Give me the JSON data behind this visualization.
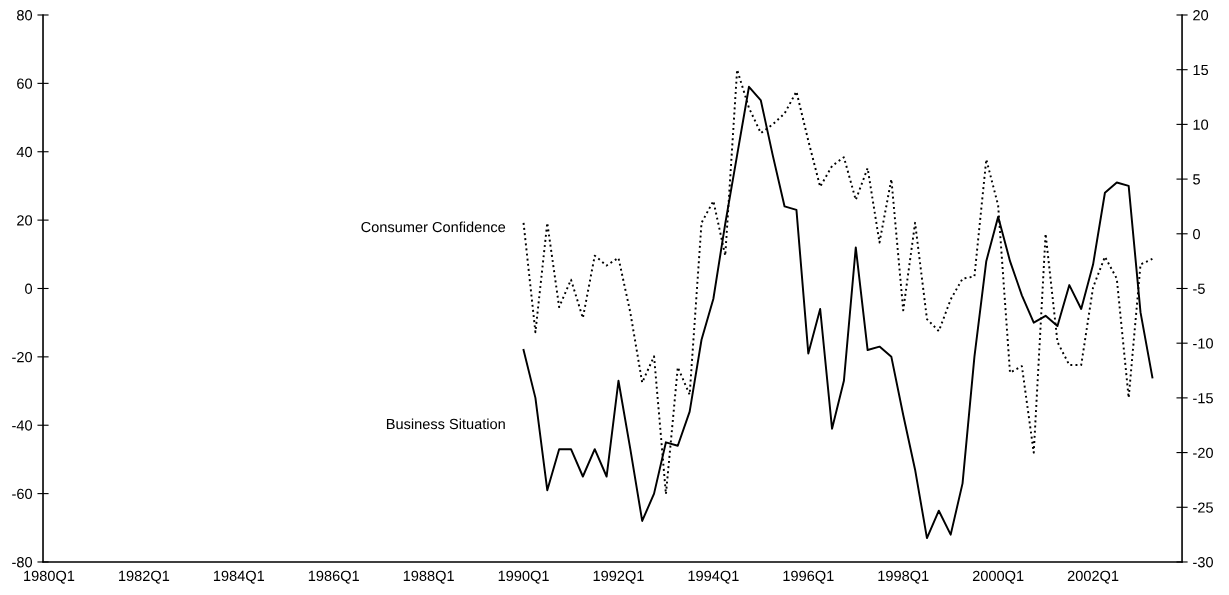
{
  "chart_data": {
    "type": "line",
    "categories": [
      "1980Q1",
      null,
      null,
      null,
      null,
      null,
      null,
      null,
      "1982Q1",
      null,
      null,
      null,
      null,
      null,
      null,
      null,
      "1984Q1",
      null,
      null,
      null,
      null,
      null,
      null,
      null,
      "1986Q1",
      null,
      null,
      null,
      null,
      null,
      null,
      null,
      "1988Q1",
      null,
      null,
      null,
      null,
      null,
      null,
      null,
      "1990Q1",
      null,
      null,
      null,
      null,
      null,
      null,
      null,
      "1992Q1",
      null,
      null,
      null,
      null,
      null,
      null,
      null,
      "1994Q1",
      null,
      null,
      null,
      null,
      null,
      null,
      null,
      "1996Q1",
      null,
      null,
      null,
      null,
      null,
      null,
      null,
      "1998Q1",
      null,
      null,
      null,
      null,
      null,
      null,
      null,
      "2000Q1",
      null,
      null,
      null,
      null,
      null,
      null,
      null,
      "2002Q1",
      null,
      null,
      null,
      null,
      null,
      null,
      null
    ],
    "series": [
      {
        "name": "Business Situation",
        "color": "#000000",
        "line_style": "solid",
        "values": [
          null,
          null,
          null,
          null,
          null,
          null,
          null,
          null,
          null,
          null,
          null,
          null,
          null,
          null,
          null,
          null,
          null,
          null,
          null,
          null,
          null,
          null,
          null,
          null,
          null,
          null,
          null,
          null,
          null,
          null,
          null,
          null,
          null,
          null,
          null,
          null,
          null,
          null,
          null,
          null,
          -18,
          -32,
          -59,
          -47,
          -47,
          -55,
          -47,
          -55,
          -27,
          -47,
          -68,
          -60,
          -45,
          -46,
          -36,
          -15,
          -3,
          19,
          39,
          59,
          55,
          39,
          24,
          23,
          -19,
          -6,
          -41,
          -27,
          12,
          -18,
          -17,
          -20,
          -37,
          -53,
          -73,
          -65,
          -72,
          -57,
          -20,
          8,
          21,
          8,
          -2,
          -10,
          -8,
          -11,
          1,
          -6,
          7,
          28,
          31,
          30,
          -7,
          -26,
          null,
          null
        ]
      },
      {
        "name": "Consumer Confidence",
        "color": "#000000",
        "line_style": "dotted",
        "axis": "y2",
        "values": [
          null,
          null,
          null,
          null,
          null,
          null,
          null,
          null,
          null,
          null,
          null,
          null,
          null,
          null,
          null,
          null,
          null,
          null,
          null,
          null,
          null,
          null,
          null,
          null,
          null,
          null,
          null,
          null,
          null,
          null,
          null,
          null,
          null,
          null,
          null,
          null,
          null,
          null,
          null,
          null,
          1,
          -9,
          1,
          -6.7,
          -4.2,
          -7.7,
          -2,
          -2.9,
          -2.2,
          -7.2,
          -13.6,
          -11.2,
          -23.8,
          -12.2,
          -14.7,
          1,
          3,
          -2,
          15,
          11.5,
          9.2,
          10,
          11,
          13,
          8.5,
          4.3,
          6.2,
          7,
          3.1,
          6,
          -0.8,
          5,
          -7,
          1,
          -7.8,
          -8.9,
          -6,
          -4.1,
          -3.9,
          6.8,
          2.6,
          -12.7,
          -12.1,
          -20,
          0,
          -9.9,
          -12,
          -12,
          -4.9,
          -2.1,
          -4.1,
          -15,
          -2.8,
          -2.3,
          null,
          null
        ]
      }
    ],
    "ylim": [
      -80,
      80
    ],
    "yticks": [
      -80,
      -60,
      -40,
      -20,
      0,
      20,
      40,
      60,
      80
    ],
    "y2lim": [
      -30,
      20
    ],
    "y2ticks": [
      -30,
      -25,
      -20,
      -15,
      -10,
      -5,
      0,
      5,
      10,
      15,
      20
    ],
    "grid": false,
    "legend": false
  }
}
